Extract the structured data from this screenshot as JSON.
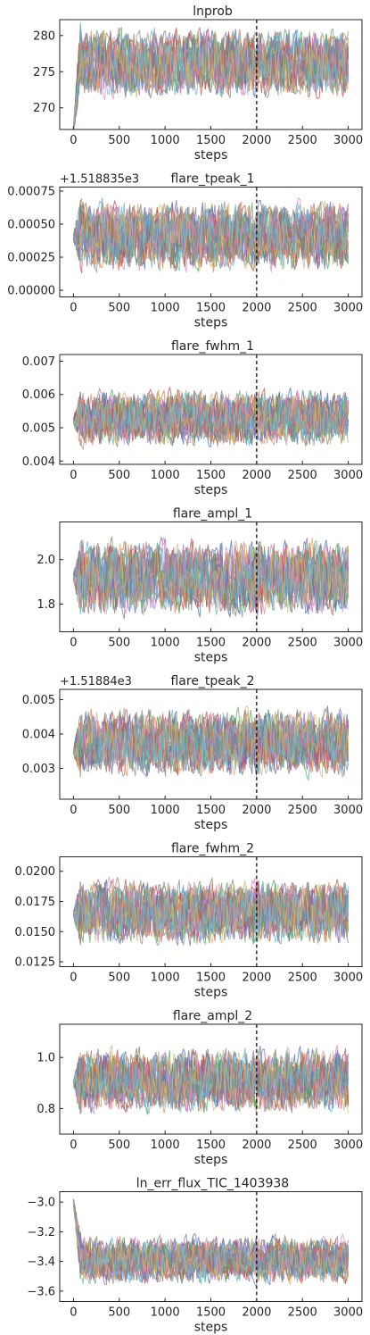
{
  "chart_data": [
    {
      "type": "line",
      "title": "lnprob",
      "xlabel": "steps",
      "offset": "",
      "xlim": [
        -150,
        3150
      ],
      "ylim": [
        267,
        282.2
      ],
      "xticks": [
        0,
        500,
        1000,
        1500,
        2000,
        2500,
        3000
      ],
      "yticks": [
        {
          "v": 270,
          "l": "270"
        },
        {
          "v": 275,
          "l": "275"
        },
        {
          "v": 280,
          "l": "280"
        }
      ],
      "burnin_step": 2000,
      "n_walkers": 20,
      "trace_summary": {
        "start": 267,
        "after_burnin_center": 278,
        "after_burnin_range": [
          270.5,
          281.8
        ]
      }
    },
    {
      "type": "line",
      "title": "flare_tpeak_1",
      "xlabel": "steps",
      "offset": "+1.518835e3",
      "xlim": [
        -150,
        3150
      ],
      "ylim": [
        -5e-05,
        0.00078
      ],
      "xticks": [
        0,
        500,
        1000,
        1500,
        2000,
        2500,
        3000
      ],
      "yticks": [
        {
          "v": 0,
          "l": "0.00000"
        },
        {
          "v": 0.00025,
          "l": "0.00025"
        },
        {
          "v": 0.0005,
          "l": "0.00050"
        },
        {
          "v": 0.00075,
          "l": "0.00075"
        }
      ],
      "burnin_step": 2000,
      "n_walkers": 20,
      "trace_summary": {
        "start": 0.0004,
        "after_burnin_center": 0.00043,
        "after_burnin_range": [
          0.0001,
          0.00072
        ]
      }
    },
    {
      "type": "line",
      "title": "flare_fwhm_1",
      "xlabel": "steps",
      "offset": "",
      "xlim": [
        -150,
        3150
      ],
      "ylim": [
        0.0039,
        0.0072
      ],
      "xticks": [
        0,
        500,
        1000,
        1500,
        2000,
        2500,
        3000
      ],
      "yticks": [
        {
          "v": 0.004,
          "l": "0.004"
        },
        {
          "v": 0.005,
          "l": "0.005"
        },
        {
          "v": 0.006,
          "l": "0.006"
        },
        {
          "v": 0.007,
          "l": "0.007"
        }
      ],
      "burnin_step": 2000,
      "n_walkers": 20,
      "trace_summary": {
        "start": 0.0052,
        "after_burnin_center": 0.0053,
        "after_burnin_range": [
          0.0043,
          0.0063
        ]
      }
    },
    {
      "type": "line",
      "title": "flare_ampl_1",
      "xlabel": "steps",
      "offset": "",
      "xlim": [
        -150,
        3150
      ],
      "ylim": [
        1.675,
        2.17
      ],
      "xticks": [
        0,
        500,
        1000,
        1500,
        2000,
        2500,
        3000
      ],
      "yticks": [
        {
          "v": 1.8,
          "l": "1.8"
        },
        {
          "v": 2.0,
          "l": "2.0"
        }
      ],
      "burnin_step": 2000,
      "n_walkers": 20,
      "trace_summary": {
        "start": 1.92,
        "after_burnin_center": 1.91,
        "after_burnin_range": [
          1.72,
          2.12
        ]
      }
    },
    {
      "type": "line",
      "title": "flare_tpeak_2",
      "xlabel": "steps",
      "offset": "+1.51884e3",
      "xlim": [
        -150,
        3150
      ],
      "ylim": [
        0.0021,
        0.0053
      ],
      "xticks": [
        0,
        500,
        1000,
        1500,
        2000,
        2500,
        3000
      ],
      "yticks": [
        {
          "v": 0.003,
          "l": "0.003"
        },
        {
          "v": 0.004,
          "l": "0.004"
        },
        {
          "v": 0.005,
          "l": "0.005"
        }
      ],
      "burnin_step": 2000,
      "n_walkers": 20,
      "trace_summary": {
        "start": 0.0035,
        "after_burnin_center": 0.0037,
        "after_burnin_range": [
          0.0026,
          0.0049
        ]
      }
    },
    {
      "type": "line",
      "title": "flare_fwhm_2",
      "xlabel": "steps",
      "offset": "",
      "xlim": [
        -150,
        3150
      ],
      "ylim": [
        0.0121,
        0.0212
      ],
      "xticks": [
        0,
        500,
        1000,
        1500,
        2000,
        2500,
        3000
      ],
      "yticks": [
        {
          "v": 0.0125,
          "l": "0.0125"
        },
        {
          "v": 0.015,
          "l": "0.0150"
        },
        {
          "v": 0.0175,
          "l": "0.0175"
        },
        {
          "v": 0.02,
          "l": "0.0200"
        }
      ],
      "burnin_step": 2000,
      "n_walkers": 20,
      "trace_summary": {
        "start": 0.0165,
        "after_burnin_center": 0.0165,
        "after_burnin_range": [
          0.0135,
          0.0198
        ]
      }
    },
    {
      "type": "line",
      "title": "flare_ampl_2",
      "xlabel": "steps",
      "offset": "",
      "xlim": [
        -150,
        3150
      ],
      "ylim": [
        0.7,
        1.13
      ],
      "xticks": [
        0,
        500,
        1000,
        1500,
        2000,
        2500,
        3000
      ],
      "yticks": [
        {
          "v": 0.8,
          "l": "0.8"
        },
        {
          "v": 1.0,
          "l": "1.0"
        }
      ],
      "burnin_step": 2000,
      "n_walkers": 20,
      "trace_summary": {
        "start": 0.9,
        "after_burnin_center": 0.9,
        "after_burnin_range": [
          0.76,
          1.06
        ]
      }
    },
    {
      "type": "line",
      "title": "ln_err_flux_TIC_1403938",
      "xlabel": "steps",
      "offset": "",
      "xlim": [
        -150,
        3150
      ],
      "ylim": [
        -3.67,
        -2.93
      ],
      "xticks": [
        0,
        500,
        1000,
        1500,
        2000,
        2500,
        3000
      ],
      "yticks": [
        {
          "v": -3.6,
          "l": "−3.6"
        },
        {
          "v": -3.4,
          "l": "−3.4"
        },
        {
          "v": -3.2,
          "l": "−3.2"
        },
        {
          "v": -3.0,
          "l": "−3.0"
        }
      ],
      "burnin_step": 2000,
      "n_walkers": 20,
      "trace_summary": {
        "start": -3.0,
        "after_burnin_center": -3.38,
        "after_burnin_range": [
          -3.58,
          -3.2
        ]
      }
    }
  ],
  "colors": [
    "#4c72b0",
    "#dd8452",
    "#55a868",
    "#c44e52",
    "#8172b3",
    "#937860",
    "#da8bc3",
    "#8c8c8c",
    "#ccb974",
    "#64b5cd"
  ]
}
